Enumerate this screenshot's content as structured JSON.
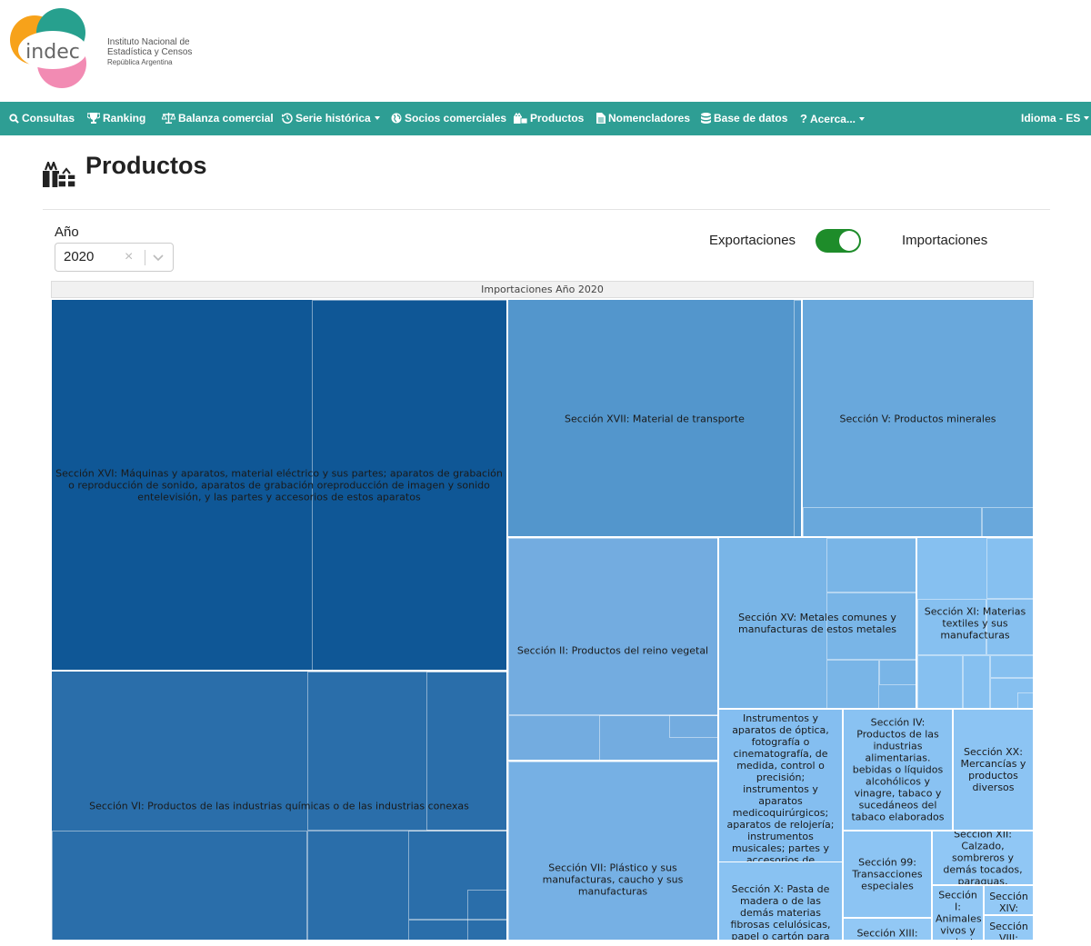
{
  "logo": {
    "brand": "indec",
    "line1": "Instituto Nacional de",
    "line2": "Estadística y Censos",
    "line3": "República Argentina"
  },
  "nav": {
    "items": [
      {
        "label": "Consultas",
        "icon": "search-icon"
      },
      {
        "label": "Ranking",
        "icon": "trophy-icon"
      },
      {
        "label": "Balanza comercial",
        "icon": "balance-scale-icon"
      },
      {
        "label": "Serie histórica",
        "icon": "history-icon",
        "dropdown": true
      },
      {
        "label": "Socios comerciales",
        "icon": "globe-icon"
      },
      {
        "label": "Productos",
        "icon": "gifts-icon"
      },
      {
        "label": "Nomencladores",
        "icon": "document-icon"
      },
      {
        "label": "Base de datos",
        "icon": "database-icon"
      },
      {
        "label": "Acerca...",
        "icon": "question-icon",
        "dropdown": true
      }
    ],
    "language": "Idioma - ES"
  },
  "page": {
    "title": "Productos",
    "title_icon": "gifts-icon"
  },
  "filters": {
    "year_label": "Año",
    "year_value": "2020",
    "clear_symbol": "×",
    "export_label": "Exportaciones",
    "import_label": "Importaciones",
    "toggle_on": true
  },
  "colors": {
    "navbar": "#2e9e94",
    "toggle": "#1e8c2a"
  },
  "chart_data": {
    "type": "treemap",
    "title": "Importaciones Año 2020",
    "sections": [
      {
        "label": "Sección XVI: Máquinas y aparatos, material eléctrico y sus partes; aparatos de grabación o reproducción de sonido, aparatos de grabación oreproducción de imagen y sonido entelevisión, y las partes y accesorios de estos aparatos",
        "color": "#0f5796"
      },
      {
        "label": "Sección VI: Productos de las industrias químicas o de las industrias conexas",
        "color": "#2a6eaa"
      },
      {
        "label": "Sección XVII: Material de transporte",
        "color": "#5396cc"
      },
      {
        "label": "Sección V: Productos minerales",
        "color": "#69a8dc"
      },
      {
        "label": "Sección II: Productos del reino vegetal",
        "color": "#73ace0"
      },
      {
        "label": "Sección XV: Metales comunes y manufacturas de estos metales",
        "color": "#79b5e7"
      },
      {
        "label": "Sección XI: Materias textiles y sus manufacturas",
        "color": "#86c0f0"
      },
      {
        "label": "Sección VII: Plástico y sus manufacturas, caucho y sus manufacturas",
        "color": "#76b0e4"
      },
      {
        "label": "Sección XVIII: Instrumentos y aparatos de óptica, fotografía o cinematografía, de medida, control o precisión; instrumentos y aparatos medicoquirúrgicos; aparatos de relojería; instrumentos musicales; partes y accesorios de",
        "color": "#84bef0"
      },
      {
        "label": "Sección IV: Productos de las industrias alimentarias. bebidas o líquidos alcohólicos y vinagre, tabaco y sucedáneos del tabaco elaborados",
        "color": "#89c2f2"
      },
      {
        "label": "Sección XX: Mercancías y productos diversos",
        "color": "#8cc4f3"
      },
      {
        "label": "Sección X: Pasta de madera o de las demás materias fibrosas celulósicas, papel o cartón para reciclar (desperdicios y",
        "color": "#89c2f2"
      },
      {
        "label": "Sección 99: Transacciones especiales",
        "color": "#8cc4f3"
      },
      {
        "label": "Sección XII: Calzado, sombreros y demás tocados, paraguas,",
        "color": "#90c7f5"
      },
      {
        "label": "Sección I: Animales vivos y productos",
        "color": "#92c8f5"
      },
      {
        "label": "Sección XIV:",
        "color": "#93c9f6"
      },
      {
        "label": "Sección XIII:",
        "color": "#92c8f5"
      },
      {
        "label": "Sección VIII:",
        "color": "#93c9f6"
      }
    ]
  }
}
